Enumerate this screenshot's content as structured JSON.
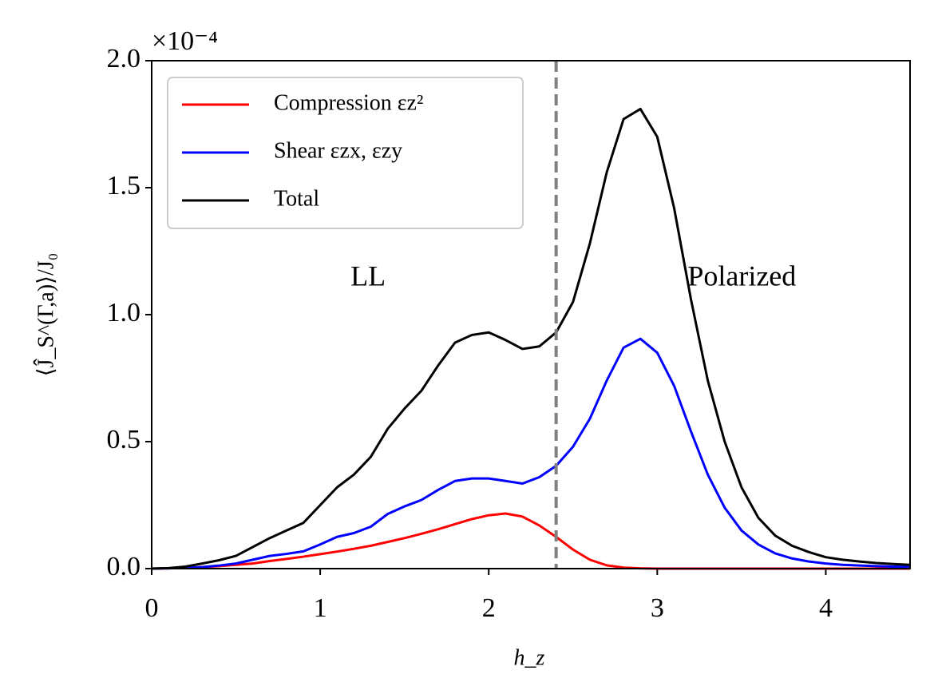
{
  "chart_data": {
    "type": "line",
    "y_offset_label": "×10⁻⁴",
    "xlabel": "h_z",
    "ylabel": "⟨Ĵ_S^(Γ,a)⟩/J₀",
    "x": [
      0,
      0.1,
      0.2,
      0.3,
      0.4,
      0.5,
      0.6,
      0.7,
      0.8,
      0.9,
      1.0,
      1.1,
      1.2,
      1.3,
      1.4,
      1.5,
      1.6,
      1.7,
      1.8,
      1.9,
      2.0,
      2.1,
      2.2,
      2.3,
      2.4,
      2.5,
      2.6,
      2.7,
      2.8,
      2.9,
      3.0,
      3.1,
      3.2,
      3.3,
      3.4,
      3.5,
      3.6,
      3.7,
      3.8,
      3.9,
      4.0,
      4.1,
      4.2,
      4.3,
      4.4,
      4.5
    ],
    "series": [
      {
        "name": "Compression εz²",
        "color": "#ff0000",
        "values": [
          0,
          0.001,
          0.003,
          0.006,
          0.01,
          0.015,
          0.02,
          0.03,
          0.038,
          0.047,
          0.057,
          0.067,
          0.078,
          0.09,
          0.105,
          0.12,
          0.137,
          0.155,
          0.175,
          0.195,
          0.21,
          0.217,
          0.205,
          0.17,
          0.125,
          0.075,
          0.035,
          0.013,
          0.004,
          0.001,
          0,
          0,
          0,
          0,
          0,
          0,
          0,
          0,
          0,
          0,
          0,
          0,
          0,
          0,
          0,
          0
        ]
      },
      {
        "name": "Shear εzx, εzy",
        "color": "#0000ff",
        "values": [
          0,
          0.001,
          0.003,
          0.006,
          0.012,
          0.02,
          0.035,
          0.05,
          0.058,
          0.068,
          0.095,
          0.125,
          0.14,
          0.165,
          0.215,
          0.245,
          0.27,
          0.31,
          0.345,
          0.355,
          0.355,
          0.345,
          0.335,
          0.36,
          0.405,
          0.48,
          0.59,
          0.74,
          0.87,
          0.905,
          0.85,
          0.72,
          0.54,
          0.37,
          0.24,
          0.15,
          0.095,
          0.06,
          0.04,
          0.028,
          0.02,
          0.015,
          0.012,
          0.01,
          0.008,
          0.007
        ]
      },
      {
        "name": "Total",
        "color": "#000000",
        "values": [
          0,
          0.002,
          0.008,
          0.02,
          0.033,
          0.05,
          0.085,
          0.12,
          0.15,
          0.18,
          0.25,
          0.32,
          0.37,
          0.44,
          0.55,
          0.63,
          0.7,
          0.8,
          0.89,
          0.92,
          0.93,
          0.9,
          0.865,
          0.875,
          0.93,
          1.05,
          1.28,
          1.56,
          1.77,
          1.81,
          1.7,
          1.42,
          1.06,
          0.74,
          0.5,
          0.32,
          0.2,
          0.13,
          0.09,
          0.065,
          0.045,
          0.035,
          0.028,
          0.022,
          0.018,
          0.015
        ]
      }
    ],
    "vline": {
      "x": 2.4,
      "color": "#808080"
    },
    "annotations": [
      {
        "text": "LL",
        "x": 1.18,
        "y": 1.14
      },
      {
        "text": "Polarized",
        "x": 3.18,
        "y": 1.14
      }
    ],
    "xlim": [
      0,
      4.5
    ],
    "xticks": [
      0,
      1,
      2,
      3,
      4
    ],
    "ylim": [
      0,
      2.0
    ],
    "yticks": [
      {
        "value": 0,
        "label": "0.0"
      },
      {
        "value": 0.5,
        "label": "0.5"
      },
      {
        "value": 1.0,
        "label": "1.0"
      },
      {
        "value": 1.5,
        "label": "1.5"
      },
      {
        "value": 2.0,
        "label": "2.0"
      }
    ],
    "legend": "upper left",
    "grid": false
  }
}
